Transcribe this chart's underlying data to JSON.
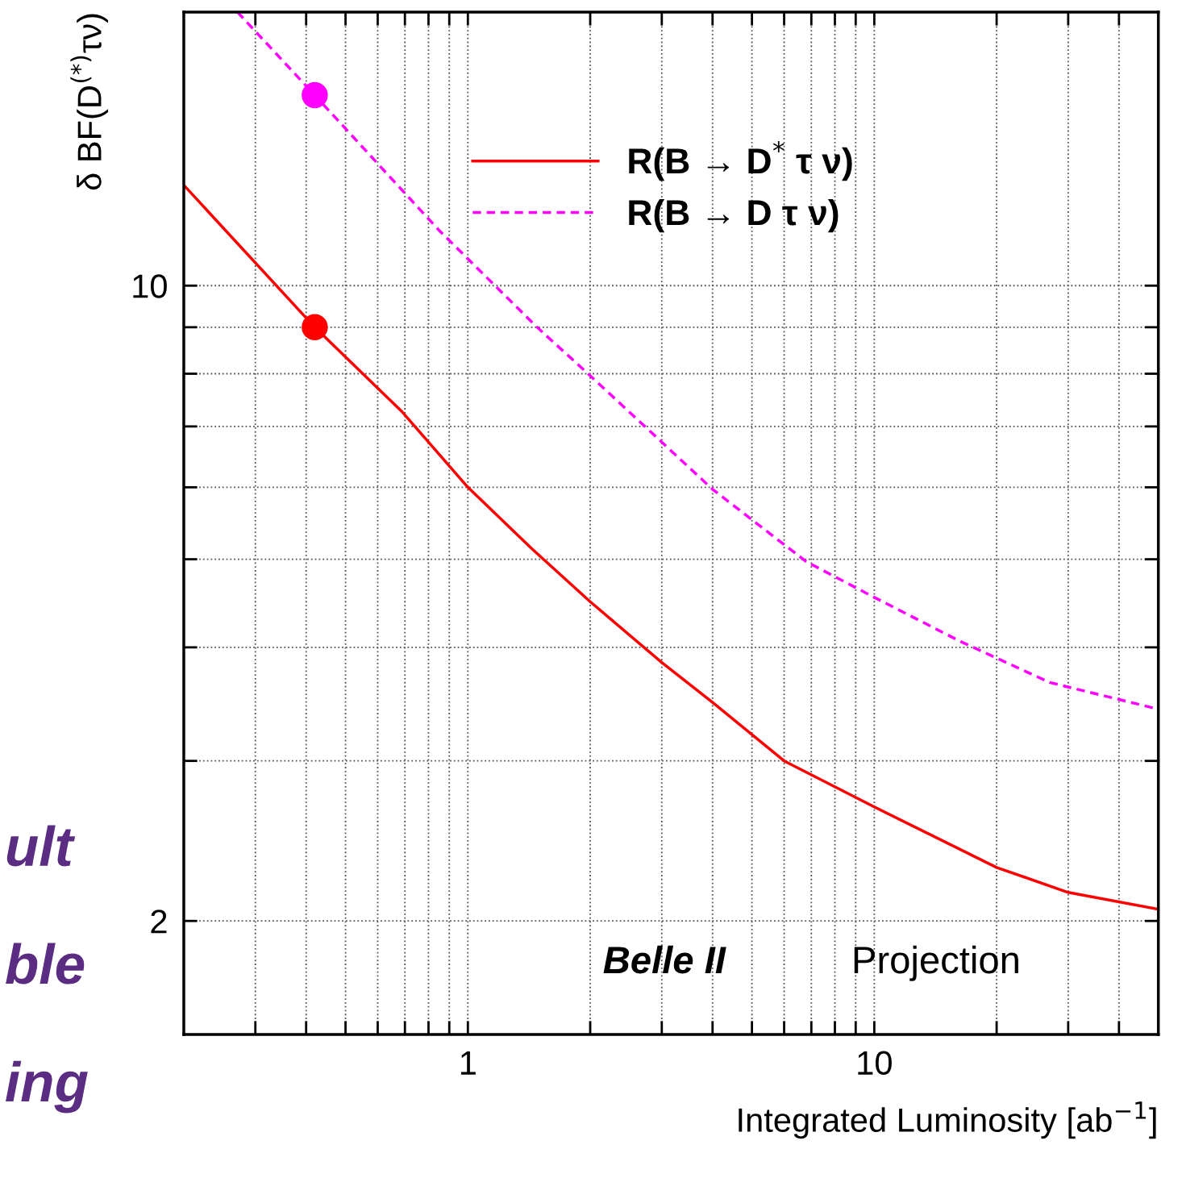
{
  "chart_data": {
    "type": "line",
    "xlabel": "Integrated Luminosity [ab$^{−1}$]",
    "ylabel": "δ BF(D$^{(*)}$τν)",
    "log": "xy",
    "xlim": [
      0.2,
      50
    ],
    "ylim": [
      1.5,
      20
    ],
    "xticks": [
      {
        "value": 0.3,
        "label": null
      },
      {
        "value": 0.4,
        "label": null
      },
      {
        "value": 0.5,
        "label": null
      },
      {
        "value": 0.6,
        "label": null
      },
      {
        "value": 0.7,
        "label": null
      },
      {
        "value": 0.8,
        "label": null
      },
      {
        "value": 0.9,
        "label": null
      },
      1,
      {
        "value": 2,
        "label": null
      },
      {
        "value": 3,
        "label": null
      },
      {
        "value": 4,
        "label": null
      },
      {
        "value": 5,
        "label": null
      },
      {
        "value": 6,
        "label": null
      },
      {
        "value": 7,
        "label": null
      },
      {
        "value": 8,
        "label": null
      },
      {
        "value": 9,
        "label": null
      },
      10,
      {
        "value": 20,
        "label": null
      },
      {
        "value": 30,
        "label": null
      },
      {
        "value": 40,
        "label": null
      }
    ],
    "yticks": [
      2,
      {
        "value": 3,
        "label": null
      },
      {
        "value": 4,
        "label": null
      },
      {
        "value": 5,
        "label": null
      },
      {
        "value": 6,
        "label": null
      },
      {
        "value": 7,
        "label": null
      },
      {
        "value": 8,
        "label": null
      },
      {
        "value": 9,
        "label": null
      },
      10
    ],
    "grid": true,
    "legend": "top right",
    "series": [
      {
        "name": "R(B → D$^{*}$ τ ν)",
        "color": "#ff0000",
        "line_style": "solid",
        "marker": "none",
        "x": [
          0.2,
          0.42,
          0.69,
          1,
          1.44,
          2,
          3,
          4,
          6,
          10,
          20,
          30,
          50
        ],
        "values": [
          12.9,
          9.0,
          7.26,
          6.0,
          5.13,
          4.49,
          3.85,
          3.48,
          3.0,
          2.67,
          2.29,
          2.15,
          2.06
        ]
      },
      {
        "name": "R(B → D τ ν)",
        "color": "#ff00ff",
        "line_style": "dashed",
        "marker": "none",
        "x": [
          0.271,
          0.42,
          0.85,
          1.48,
          2,
          4,
          6.8,
          10,
          16.3,
          27,
          50
        ],
        "values": [
          20,
          16.2,
          11.5,
          9.0,
          7.96,
          5.97,
          4.97,
          4.54,
          4.06,
          3.66,
          3.42
        ]
      },
      {
        "type": "scatter",
        "color": "#ff00ff",
        "marker": "circle",
        "x": [
          0.42
        ],
        "values": [
          16.2
        ]
      },
      {
        "type": "scatter",
        "color": "#ff0000",
        "marker": "circle",
        "x": [
          0.42
        ],
        "values": [
          9.0
        ]
      }
    ],
    "annotations": [
      "Belle II",
      "Projection",
      "ult",
      "ble",
      "ing"
    ]
  }
}
